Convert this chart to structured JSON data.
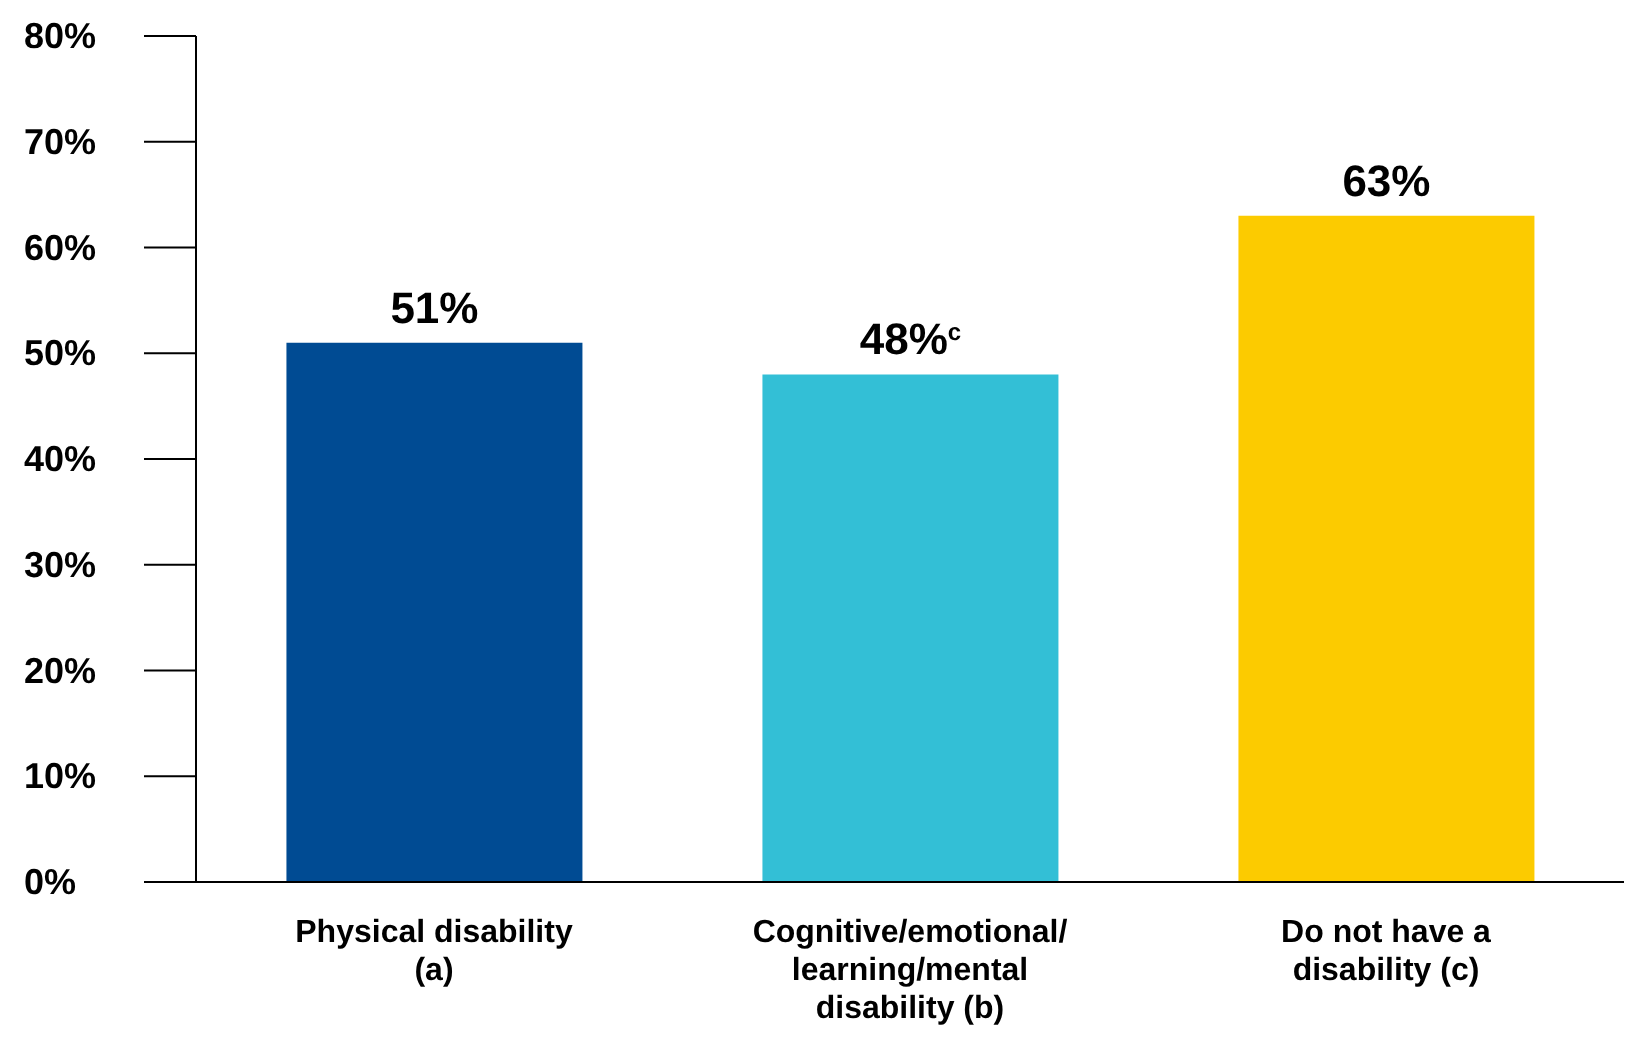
{
  "chart_data": {
    "type": "bar",
    "categories": [
      "Physical disability (a)",
      "Cognitive/emotional/learning/mental disability (b)",
      "Do not have a disability (c)"
    ],
    "values": [
      51,
      48,
      63
    ],
    "colors": [
      "#004b93",
      "#33bfd6",
      "#fccb00"
    ],
    "value_labels": [
      "51%",
      "48%$^{c}$",
      "63%"
    ],
    "ylim": [
      0,
      80
    ],
    "yticks": [
      {
        "value": 0,
        "label": "0%"
      },
      {
        "value": 10,
        "label": "10%"
      },
      {
        "value": 20,
        "label": "20%"
      },
      {
        "value": 30,
        "label": "30%"
      },
      {
        "value": 40,
        "label": "40%"
      },
      {
        "value": 50,
        "label": "50%"
      },
      {
        "value": 60,
        "label": "60%"
      },
      {
        "value": 70,
        "label": "70%"
      },
      {
        "value": 80,
        "label": "80%"
      }
    ],
    "grid": false
  }
}
